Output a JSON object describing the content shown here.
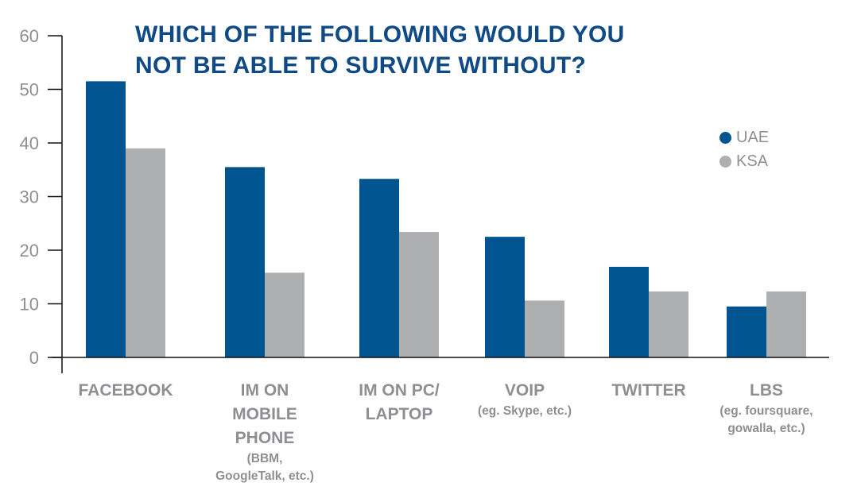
{
  "chart_data": {
    "type": "bar",
    "title_lines": [
      "WHICH OF THE FOLLOWING WOULD YOU",
      "NOT BE ABLE TO SURVIVE WITHOUT?"
    ],
    "categories": [
      "FACEBOOK",
      "IM ON MOBILE PHONE",
      "IM ON PC/ LAPTOP",
      "VOIP",
      "TWITTER",
      "LBS"
    ],
    "category_labels": [
      {
        "main": [
          "FACEBOOK"
        ],
        "sub": []
      },
      {
        "main": [
          "IM ON",
          "MOBILE",
          "PHONE"
        ],
        "sub": [
          "(BBM,",
          "GoogleTalk, etc.)"
        ]
      },
      {
        "main": [
          "IM ON PC/",
          "LAPTOP"
        ],
        "sub": []
      },
      {
        "main": [
          "VOIP"
        ],
        "sub": [
          "(eg. Skype, etc.)"
        ]
      },
      {
        "main": [
          "TWITTER"
        ],
        "sub": []
      },
      {
        "main": [
          "LBS"
        ],
        "sub": [
          "(eg. foursquare,",
          "gowalla, etc.)"
        ]
      }
    ],
    "series": [
      {
        "name": "UAE",
        "color": "#005591",
        "values": [
          51.5,
          35.5,
          33.3,
          22.5,
          16.9,
          9.5
        ]
      },
      {
        "name": "KSA",
        "color": "#aeafb1",
        "values": [
          39,
          15.8,
          23.4,
          10.6,
          12.3,
          12.3
        ]
      }
    ],
    "ylim": [
      0,
      60
    ],
    "yticks": [
      0,
      10,
      20,
      30,
      40,
      50,
      60
    ],
    "xlabel": "",
    "ylabel": "",
    "legend_position": "right",
    "grid": false
  }
}
